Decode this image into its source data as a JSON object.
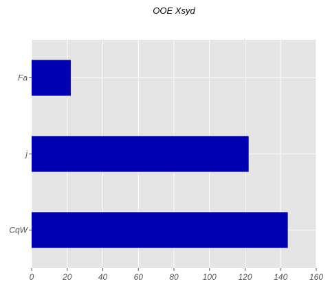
{
  "chart_data": {
    "type": "bar",
    "orientation": "horizontal",
    "title": "OOE Xsyd",
    "xlabel": "",
    "ylabel": "",
    "categories": [
      "Fa",
      "j",
      "CqW"
    ],
    "values": [
      22,
      122,
      144
    ],
    "xlim": [
      0,
      160
    ],
    "x_ticks": [
      0,
      20,
      40,
      60,
      80,
      100,
      120,
      140,
      160
    ],
    "grid": true,
    "legend": "none",
    "colors": {
      "bar": "#0000b3",
      "plot_background": "#e5e5e5",
      "grid": "#ffffff",
      "tick_text": "#555555"
    }
  }
}
